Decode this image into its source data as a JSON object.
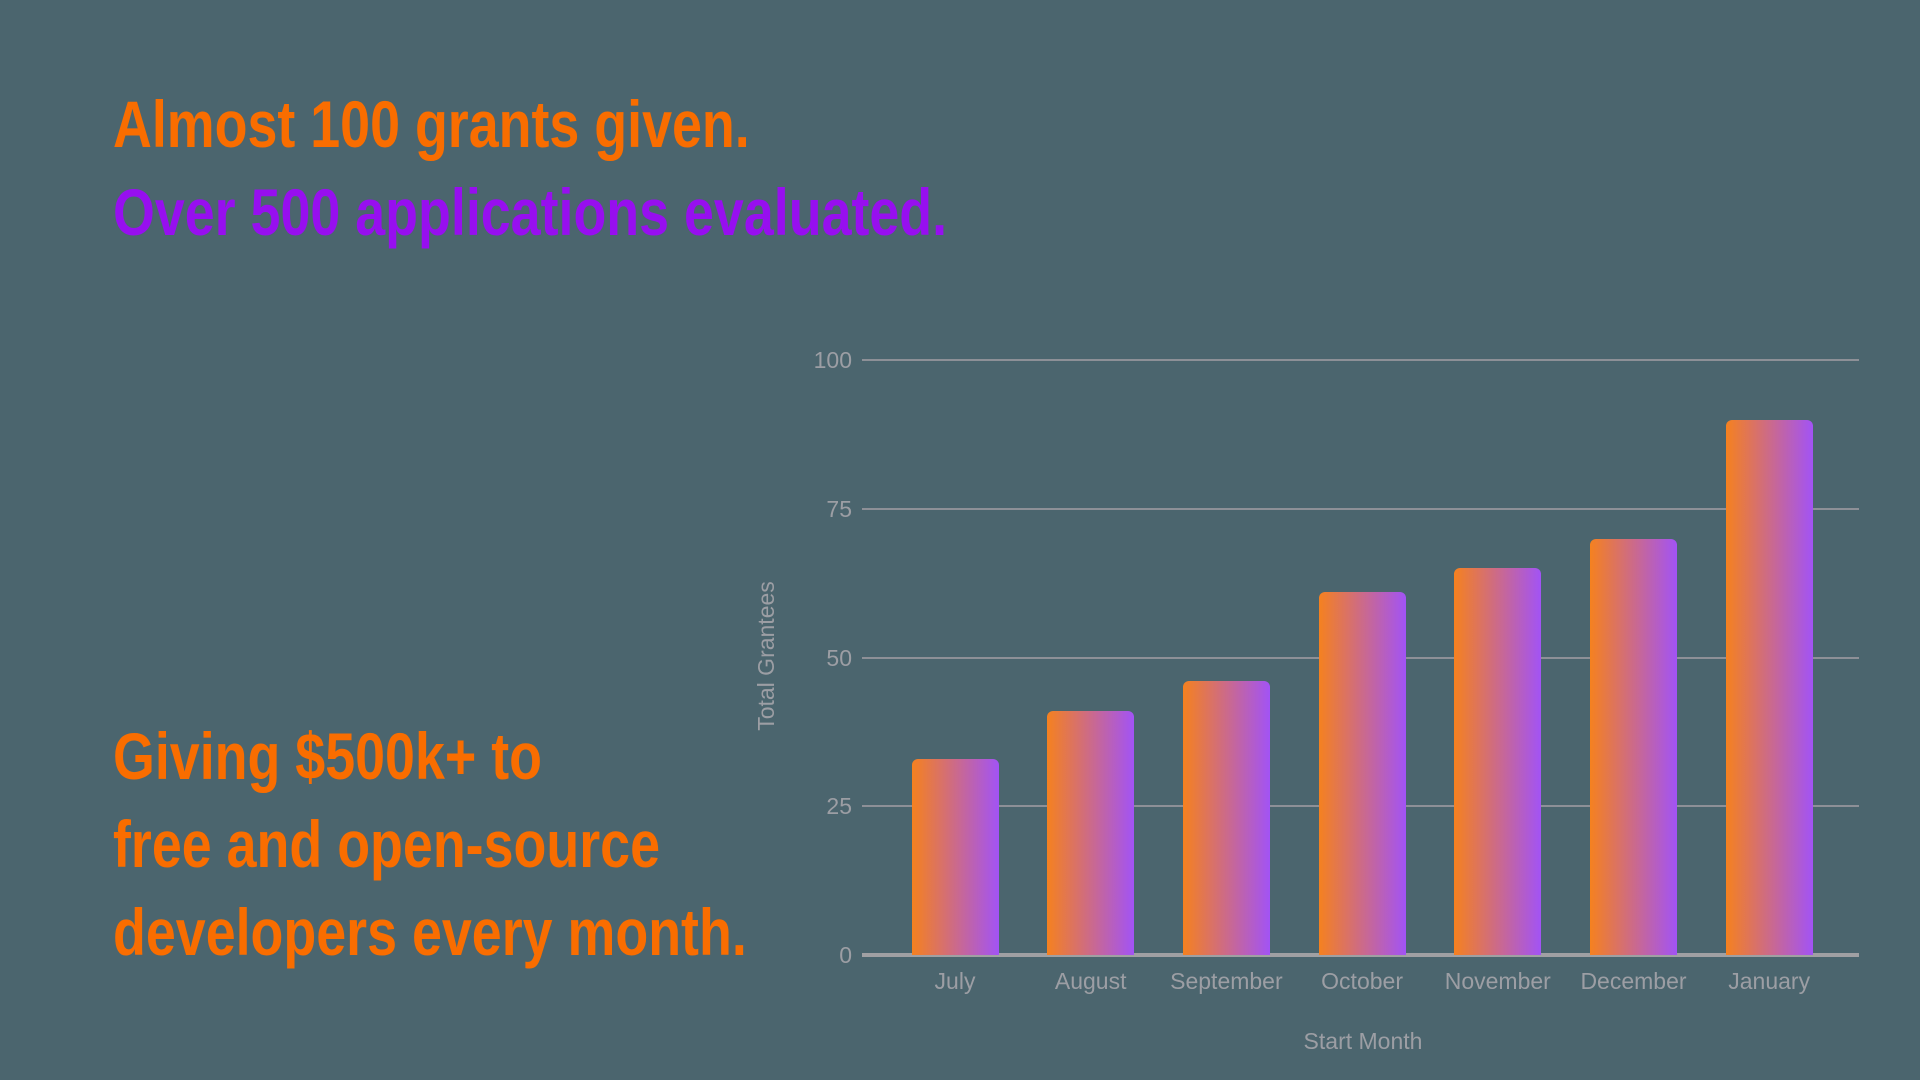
{
  "page": {
    "background_color": "#4B656E"
  },
  "headline": {
    "line1": {
      "text": "Almost 100 grants given.",
      "color": "#F96D00"
    },
    "line2": {
      "text": "Over 500 applications evaluated.",
      "color": "#970FEF"
    }
  },
  "subheadline": {
    "color": "#F96D00",
    "line1": "Giving $500k+ to",
    "line2": "free and open-source",
    "line3": "developers every month."
  },
  "chart_data": {
    "type": "bar",
    "categories": [
      "July",
      "August",
      "September",
      "October",
      "November",
      "December",
      "January"
    ],
    "values": [
      33,
      41,
      46,
      61,
      65,
      70,
      90
    ],
    "title": "",
    "xlabel": "Start Month",
    "ylabel": "Total Grantees",
    "yticks": [
      0,
      25,
      50,
      75,
      100
    ],
    "ylim": [
      0,
      100
    ],
    "grid": true,
    "legend": "none",
    "bar_gradient_left": "#F5811F",
    "bar_gradient_right": "#A253F5",
    "axis_text_color": "#9C9EA4",
    "gridline_color": "#95959B",
    "baseline_color": "#A0A0A3"
  }
}
